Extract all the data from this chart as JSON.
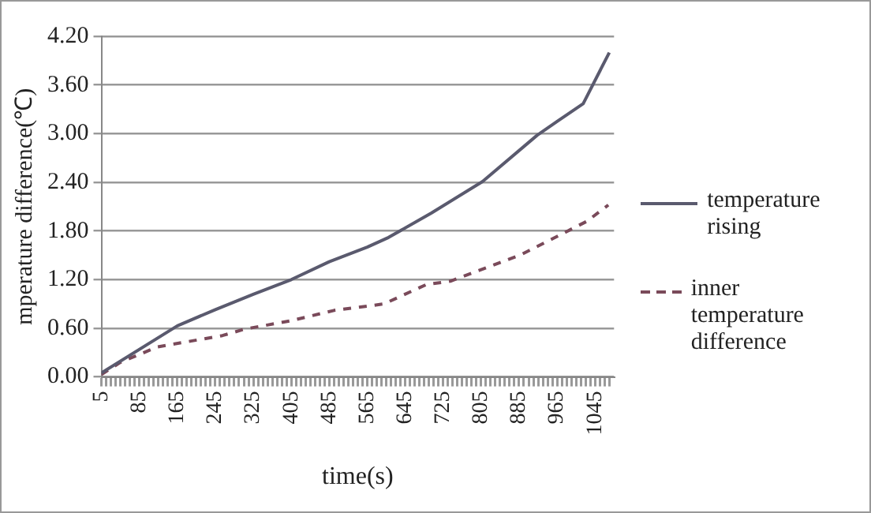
{
  "chart_data": {
    "type": "line",
    "xlabel": "time(s)",
    "ylabel": "mperature difference(℃)",
    "xlim": [
      5,
      1085
    ],
    "xticks": [
      5,
      {
        "value": 15,
        "label": null
      },
      {
        "value": 25,
        "label": null
      },
      {
        "value": 35,
        "label": null
      },
      {
        "value": 45,
        "label": null
      },
      {
        "value": 55,
        "label": null
      },
      {
        "value": 65,
        "label": null
      },
      {
        "value": 75,
        "label": null
      },
      85,
      {
        "value": 95,
        "label": null
      },
      {
        "value": 105,
        "label": null
      },
      {
        "value": 115,
        "label": null
      },
      {
        "value": 125,
        "label": null
      },
      {
        "value": 135,
        "label": null
      },
      {
        "value": 145,
        "label": null
      },
      {
        "value": 155,
        "label": null
      },
      165,
      {
        "value": 175,
        "label": null
      },
      {
        "value": 185,
        "label": null
      },
      {
        "value": 195,
        "label": null
      },
      {
        "value": 205,
        "label": null
      },
      {
        "value": 215,
        "label": null
      },
      {
        "value": 225,
        "label": null
      },
      {
        "value": 235,
        "label": null
      },
      245,
      {
        "value": 255,
        "label": null
      },
      {
        "value": 265,
        "label": null
      },
      {
        "value": 275,
        "label": null
      },
      {
        "value": 285,
        "label": null
      },
      {
        "value": 295,
        "label": null
      },
      {
        "value": 305,
        "label": null
      },
      {
        "value": 315,
        "label": null
      },
      325,
      {
        "value": 335,
        "label": null
      },
      {
        "value": 345,
        "label": null
      },
      {
        "value": 355,
        "label": null
      },
      {
        "value": 365,
        "label": null
      },
      {
        "value": 375,
        "label": null
      },
      {
        "value": 385,
        "label": null
      },
      {
        "value": 395,
        "label": null
      },
      405,
      {
        "value": 415,
        "label": null
      },
      {
        "value": 425,
        "label": null
      },
      {
        "value": 435,
        "label": null
      },
      {
        "value": 445,
        "label": null
      },
      {
        "value": 455,
        "label": null
      },
      {
        "value": 465,
        "label": null
      },
      {
        "value": 475,
        "label": null
      },
      485,
      {
        "value": 495,
        "label": null
      },
      {
        "value": 505,
        "label": null
      },
      {
        "value": 515,
        "label": null
      },
      {
        "value": 525,
        "label": null
      },
      {
        "value": 535,
        "label": null
      },
      {
        "value": 545,
        "label": null
      },
      {
        "value": 555,
        "label": null
      },
      565,
      {
        "value": 575,
        "label": null
      },
      {
        "value": 585,
        "label": null
      },
      {
        "value": 595,
        "label": null
      },
      {
        "value": 605,
        "label": null
      },
      {
        "value": 615,
        "label": null
      },
      {
        "value": 625,
        "label": null
      },
      {
        "value": 635,
        "label": null
      },
      645,
      {
        "value": 655,
        "label": null
      },
      {
        "value": 665,
        "label": null
      },
      {
        "value": 675,
        "label": null
      },
      {
        "value": 685,
        "label": null
      },
      {
        "value": 695,
        "label": null
      },
      {
        "value": 705,
        "label": null
      },
      {
        "value": 715,
        "label": null
      },
      725,
      {
        "value": 735,
        "label": null
      },
      {
        "value": 745,
        "label": null
      },
      {
        "value": 755,
        "label": null
      },
      {
        "value": 765,
        "label": null
      },
      {
        "value": 775,
        "label": null
      },
      {
        "value": 785,
        "label": null
      },
      {
        "value": 795,
        "label": null
      },
      805,
      {
        "value": 815,
        "label": null
      },
      {
        "value": 825,
        "label": null
      },
      {
        "value": 835,
        "label": null
      },
      {
        "value": 845,
        "label": null
      },
      {
        "value": 855,
        "label": null
      },
      {
        "value": 865,
        "label": null
      },
      {
        "value": 875,
        "label": null
      },
      885,
      {
        "value": 895,
        "label": null
      },
      {
        "value": 905,
        "label": null
      },
      {
        "value": 915,
        "label": null
      },
      {
        "value": 925,
        "label": null
      },
      {
        "value": 935,
        "label": null
      },
      {
        "value": 945,
        "label": null
      },
      {
        "value": 955,
        "label": null
      },
      965,
      {
        "value": 975,
        "label": null
      },
      {
        "value": 985,
        "label": null
      },
      {
        "value": 995,
        "label": null
      },
      {
        "value": 1005,
        "label": null
      },
      {
        "value": 1015,
        "label": null
      },
      {
        "value": 1025,
        "label": null
      },
      {
        "value": 1035,
        "label": null
      },
      1045,
      {
        "value": 1055,
        "label": null
      },
      {
        "value": 1065,
        "label": null
      },
      {
        "value": 1075,
        "label": null
      }
    ],
    "ylim": [
      0,
      4.2
    ],
    "yticks": [
      {
        "value": 0,
        "label": "0.00"
      },
      {
        "value": 0.6,
        "label": "0.60"
      },
      {
        "value": 1.2,
        "label": "1.20"
      },
      {
        "value": 1.8,
        "label": "1.80"
      },
      {
        "value": 2.4,
        "label": "2.40"
      },
      {
        "value": 3,
        "label": "3.00"
      },
      {
        "value": 3.6,
        "label": "3.60"
      },
      {
        "value": 4.2,
        "label": "4.20"
      }
    ],
    "grid": "y",
    "legend": "right",
    "marker": "none",
    "series": [
      {
        "name": "temperature rising",
        "color": "#5a5a6e",
        "line_style": "solid",
        "x": [
          5,
          165,
          245,
          325,
          405,
          485,
          565,
          610,
          700,
          808,
          923,
          965,
          1020,
          1075
        ],
        "values": [
          0.05,
          0.63,
          0.83,
          1.02,
          1.2,
          1.42,
          1.6,
          1.72,
          2.02,
          2.41,
          2.98,
          3.15,
          3.37,
          4.0
        ]
      },
      {
        "name": "inner temperature difference",
        "color": "#7a4a5a",
        "line_style": "dashed",
        "x": [
          5,
          45,
          123,
          260,
          307,
          402,
          495,
          600,
          690,
          740,
          890,
          1028,
          1073
        ],
        "values": [
          0.03,
          0.18,
          0.37,
          0.51,
          0.59,
          0.69,
          0.82,
          0.9,
          1.14,
          1.18,
          1.51,
          1.92,
          2.12
        ]
      }
    ]
  }
}
